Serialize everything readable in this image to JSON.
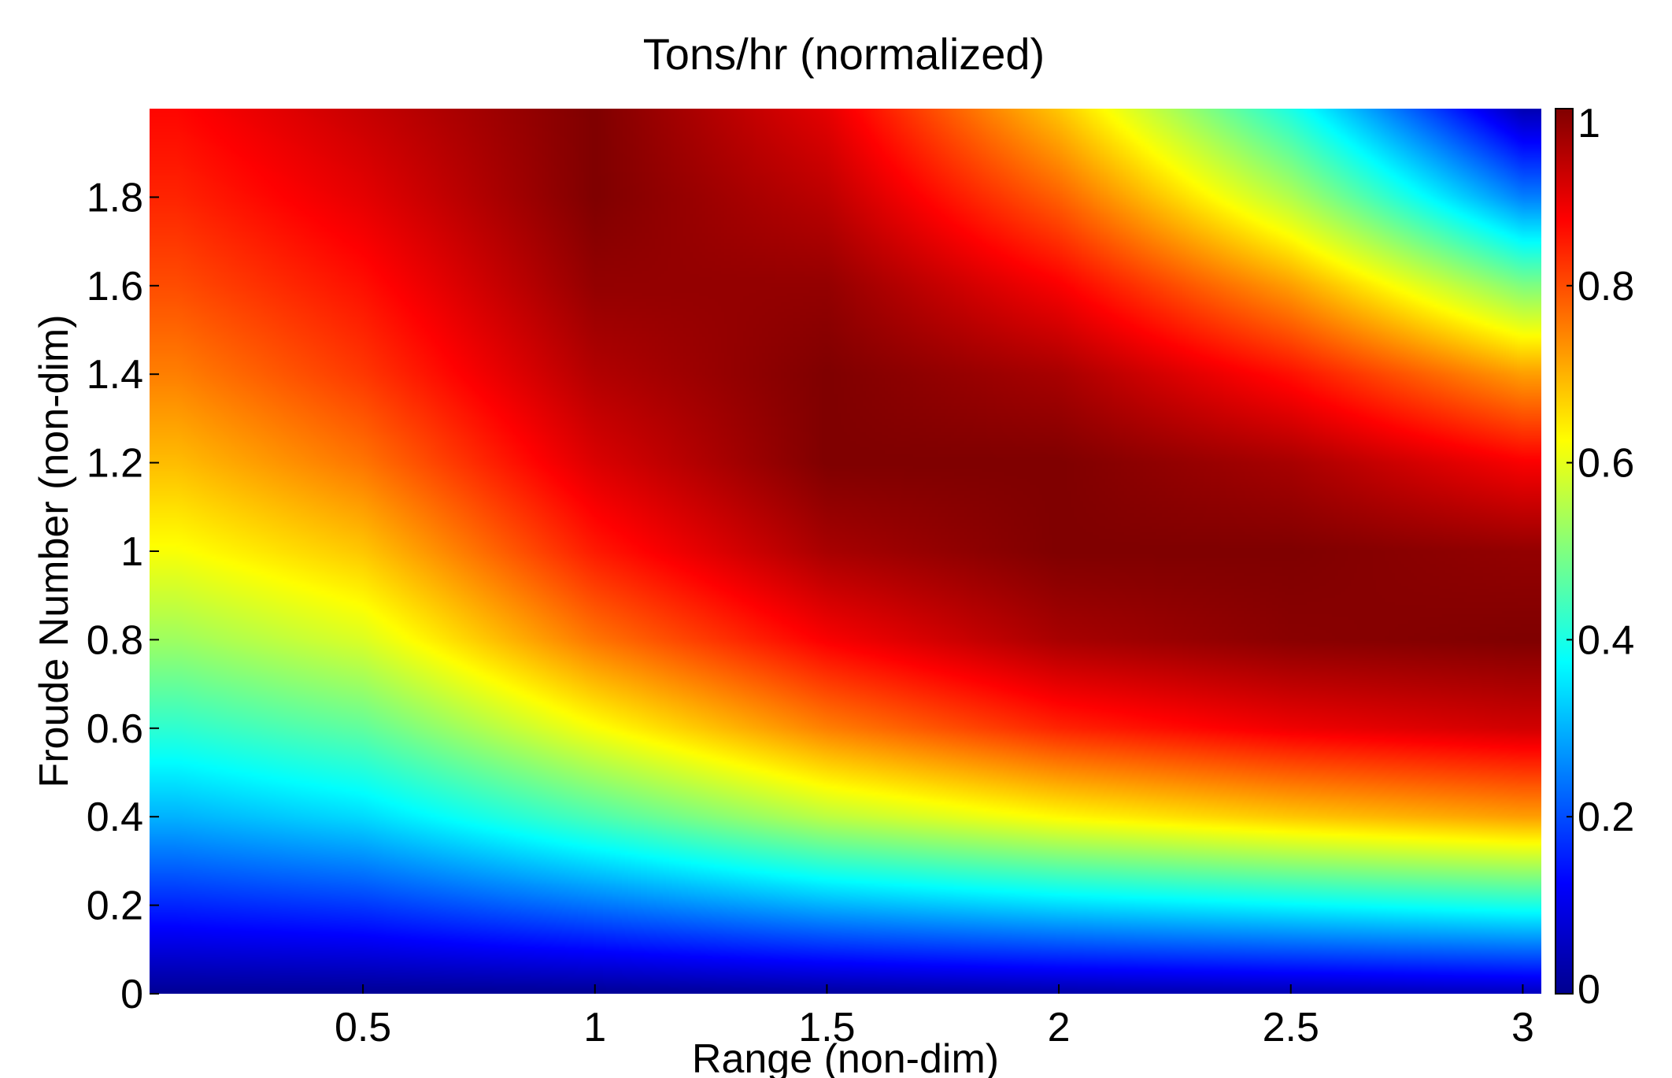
{
  "chart_data": {
    "type": "heatmap",
    "title": "Tons/hr (normalized)",
    "xlabel": "Range (non-dim)",
    "ylabel": "Froude Number (non-dim)",
    "xlim": [
      0.04,
      3.04
    ],
    "ylim": [
      0,
      2.0
    ],
    "xticks": [
      0.5,
      1,
      1.5,
      2,
      2.5,
      3
    ],
    "xtick_labels": [
      "0.5",
      "1",
      "1.5",
      "2",
      "2.5",
      "3"
    ],
    "yticks": [
      0,
      0.2,
      0.4,
      0.6,
      0.8,
      1,
      1.2,
      1.4,
      1.6,
      1.8
    ],
    "ytick_labels": [
      "0",
      "0.2",
      "0.4",
      "0.6",
      "0.8",
      "1",
      "1.2",
      "1.4",
      "1.6",
      "1.8"
    ],
    "colorbar": {
      "colormap": "jet",
      "limits": [
        0,
        1
      ],
      "ticks": [
        0,
        0.2,
        0.4,
        0.6,
        0.8,
        1
      ],
      "tick_labels": [
        "0",
        "0.2",
        "0.4",
        "0.6",
        "0.8",
        "1"
      ]
    },
    "field": {
      "description_points_x": [
        0.1,
        0.5,
        1.0,
        1.5,
        2.0,
        2.5,
        3.0
      ],
      "description_points_y": [
        0.0,
        0.2,
        0.4,
        0.6,
        0.8,
        1.0,
        1.2,
        1.4,
        1.6,
        1.8,
        2.0
      ],
      "z": [
        [
          0.02,
          0.02,
          0.02,
          0.03,
          0.04,
          0.05,
          0.06
        ],
        [
          0.16,
          0.18,
          0.24,
          0.3,
          0.34,
          0.37,
          0.4
        ],
        [
          0.3,
          0.34,
          0.45,
          0.56,
          0.63,
          0.68,
          0.72
        ],
        [
          0.42,
          0.47,
          0.62,
          0.75,
          0.84,
          0.89,
          0.92
        ],
        [
          0.53,
          0.59,
          0.76,
          0.88,
          0.96,
          0.99,
          1.0
        ],
        [
          0.62,
          0.68,
          0.85,
          0.96,
          1.0,
          1.0,
          0.98
        ],
        [
          0.69,
          0.76,
          0.91,
          1.0,
          1.0,
          0.96,
          0.88
        ],
        [
          0.75,
          0.82,
          0.95,
          1.0,
          0.96,
          0.86,
          0.72
        ],
        [
          0.8,
          0.86,
          0.98,
          0.98,
          0.88,
          0.72,
          0.5
        ],
        [
          0.84,
          0.9,
          1.0,
          0.94,
          0.78,
          0.55,
          0.25
        ],
        [
          0.87,
          0.93,
          1.0,
          0.9,
          0.68,
          0.4,
          0.05
        ]
      ]
    }
  }
}
